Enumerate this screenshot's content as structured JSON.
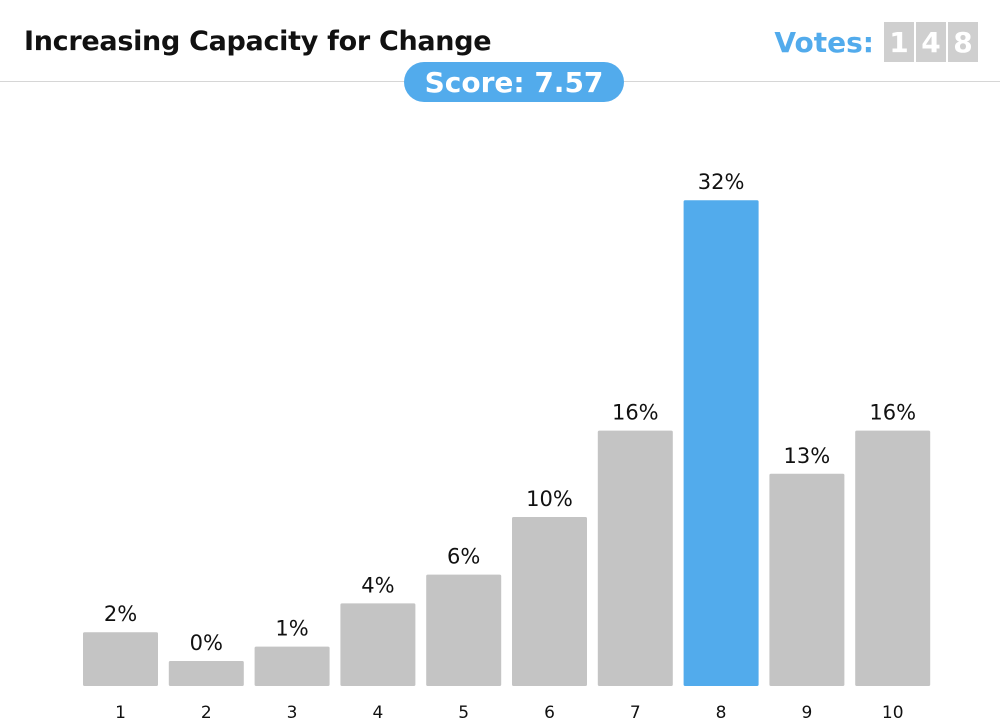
{
  "header": {
    "title": "Increasing Capacity for Change",
    "votes_label": "Votes:",
    "votes_digits": [
      "1",
      "4",
      "8"
    ]
  },
  "score": {
    "label": "Score: 7.57"
  },
  "colors": {
    "accent": "#52abec",
    "bar": "#c4c4c4",
    "digit_bg": "#cfcfcf"
  },
  "chart_data": {
    "type": "bar",
    "categories": [
      "1",
      "2",
      "3",
      "4",
      "5",
      "6",
      "7",
      "8",
      "9",
      "10"
    ],
    "values": [
      2,
      0,
      1,
      4,
      6,
      10,
      16,
      32,
      13,
      16
    ],
    "value_labels": [
      "2%",
      "0%",
      "1%",
      "4%",
      "6%",
      "10%",
      "16%",
      "32%",
      "13%",
      "16%"
    ],
    "highlight_category": "8",
    "title": "",
    "xlabel": "",
    "ylabel": "",
    "grid": false,
    "legend": "none"
  }
}
